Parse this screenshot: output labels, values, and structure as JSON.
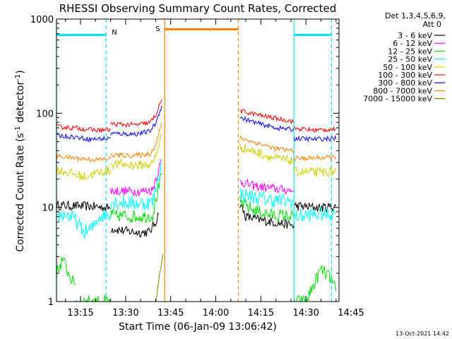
{
  "chart_data": {
    "type": "line",
    "title": "RHESSI Observing Summary Count Rates, Corrected",
    "xlabel": "Start Time (06-Jan-09 13:06:42)",
    "ylabel_main": "Corrected Count Rate (s",
    "ylabel_sup1": "-1",
    "ylabel_mid": " detector",
    "ylabel_sup2": "-1",
    "ylabel_end": ")",
    "yscale": "log",
    "ylim": [
      1,
      1000
    ],
    "xlim_min": [
      7,
      101
    ],
    "x_ticks": [
      {
        "m": 15,
        "label": "13:15"
      },
      {
        "m": 30,
        "label": "13:30"
      },
      {
        "m": 45,
        "label": "13:45"
      },
      {
        "m": 60,
        "label": "14:00"
      },
      {
        "m": 75,
        "label": "14:15"
      },
      {
        "m": 90,
        "label": "14:30"
      },
      {
        "m": 105,
        "label": "14:45"
      }
    ],
    "y_ticks": [
      {
        "v": 1,
        "label": "1"
      },
      {
        "v": 10,
        "label": "10"
      },
      {
        "v": 100,
        "label": "100"
      },
      {
        "v": 1000,
        "label": "1000"
      }
    ],
    "legend_header": [
      "Det 1,3,4,5,6,9,",
      "Att 0"
    ],
    "legend_position": "right",
    "footer": "13-Oct-2021 14:42",
    "flags": [
      {
        "label": "N",
        "color": "#00e5ee"
      },
      {
        "label": "S",
        "color": "#ff8000"
      }
    ],
    "series": [
      {
        "name": "3 - 6 keV",
        "color": "#000000",
        "noise": 0.05,
        "segments": [
          [
            [
              7,
              10.5
            ],
            [
              20,
              10.2
            ],
            [
              25,
              9.8
            ]
          ],
          [
            [
              25,
              6.0
            ],
            [
              30,
              5.6
            ],
            [
              35,
              5.4
            ],
            [
              38,
              5.5
            ],
            [
              40,
              7.0
            ],
            [
              41,
              8.5
            ]
          ],
          [
            [
              68,
              11.0
            ],
            [
              70,
              8.0
            ],
            [
              75,
              7.3
            ],
            [
              80,
              6.9
            ],
            [
              84,
              6.6
            ],
            [
              86,
              6.4
            ]
          ],
          [
            [
              86,
              10.4
            ],
            [
              95,
              9.9
            ],
            [
              100,
              10.3
            ]
          ]
        ]
      },
      {
        "name": "6 - 12 keV",
        "color": "#ff00ff",
        "noise": 0.05,
        "segments": [
          [
            [
              25,
              15.0
            ],
            [
              35,
              14.8
            ],
            [
              39,
              15.3
            ],
            [
              40,
              20.0
            ],
            [
              42,
              32.0
            ]
          ],
          [
            [
              68,
              19.0
            ],
            [
              72,
              17.0
            ],
            [
              78,
              16.0
            ],
            [
              86,
              15.0
            ]
          ]
        ]
      },
      {
        "name": "12 - 25 keV",
        "color": "#00e000",
        "noise": 0.07,
        "segments": [
          [
            [
              7,
              2.0
            ],
            [
              9,
              2.8
            ],
            [
              11,
              2.0
            ],
            [
              13,
              1.5
            ]
          ],
          [
            [
              13,
              1.0
            ],
            [
              25,
              1.0
            ]
          ],
          [
            [
              25,
              8.2
            ],
            [
              35,
              8.0
            ],
            [
              39,
              8.2
            ],
            [
              40,
              12.0
            ],
            [
              42,
              22.0
            ]
          ],
          [
            [
              68,
              11.5
            ],
            [
              72,
              9.5
            ],
            [
              78,
              8.3
            ],
            [
              86,
              8.0
            ]
          ],
          [
            [
              86,
              1.0
            ],
            [
              90,
              1.0
            ],
            [
              93,
              1.6
            ],
            [
              95,
              2.2
            ],
            [
              98,
              1.8
            ],
            [
              100,
              1.3
            ]
          ]
        ]
      },
      {
        "name": "25 - 50 keV",
        "color": "#00ffff",
        "noise": 0.08,
        "segments": [
          [
            [
              7,
              8.0
            ],
            [
              10,
              8.5
            ],
            [
              13,
              7.5
            ],
            [
              16,
              5.5
            ],
            [
              19,
              6.0
            ],
            [
              21,
              8.0
            ],
            [
              25,
              8.5
            ]
          ],
          [
            [
              25,
              11.5
            ],
            [
              35,
              11.0
            ],
            [
              39,
              11.3
            ],
            [
              40,
              16.0
            ],
            [
              42,
              30.0
            ]
          ],
          [
            [
              68,
              14.0
            ],
            [
              72,
              13.0
            ],
            [
              78,
              12.0
            ],
            [
              86,
              11.5
            ]
          ],
          [
            [
              86,
              8.0
            ],
            [
              93,
              8.4
            ],
            [
              100,
              8.5
            ]
          ]
        ]
      },
      {
        "name": "50 - 100 keV",
        "color": "#d0d000",
        "noise": 0.05,
        "segments": [
          [
            [
              7,
              25.0
            ],
            [
              12,
              23.0
            ],
            [
              16,
              21.0
            ],
            [
              20,
              23.0
            ],
            [
              25,
              25.0
            ]
          ],
          [
            [
              25,
              29.0
            ],
            [
              35,
              28.0
            ],
            [
              39,
              29.0
            ],
            [
              40,
              35.0
            ],
            [
              42,
              60.0
            ]
          ],
          [
            [
              68,
              44.0
            ],
            [
              74,
              38.0
            ],
            [
              80,
              33.0
            ],
            [
              86,
              31.0
            ]
          ],
          [
            [
              86,
              24.0
            ],
            [
              93,
              23.5
            ],
            [
              100,
              24.0
            ]
          ]
        ]
      },
      {
        "name": "100 - 300 keV",
        "color": "#ff0000",
        "noise": 0.025,
        "segments": [
          [
            [
              7,
              72.0
            ],
            [
              15,
              69.0
            ],
            [
              20,
              66.0
            ],
            [
              25,
              67.0
            ]
          ],
          [
            [
              25,
              77.0
            ],
            [
              33,
              75.0
            ],
            [
              38,
              79.0
            ],
            [
              40,
              95.0
            ],
            [
              42,
              140.0
            ]
          ],
          [
            [
              68,
              106.0
            ],
            [
              74,
              96.0
            ],
            [
              80,
              88.0
            ],
            [
              86,
              82.0
            ]
          ],
          [
            [
              86,
              69.0
            ],
            [
              93,
              66.0
            ],
            [
              100,
              68.0
            ]
          ]
        ]
      },
      {
        "name": "300 - 800 keV",
        "color": "#0000ff",
        "noise": 0.025,
        "segments": [
          [
            [
              7,
              58.0
            ],
            [
              13,
              56.0
            ],
            [
              18,
              53.0
            ],
            [
              25,
              54.0
            ]
          ],
          [
            [
              25,
              61.0
            ],
            [
              33,
              60.0
            ],
            [
              38,
              64.0
            ],
            [
              40,
              78.0
            ],
            [
              42,
              120.0
            ]
          ],
          [
            [
              68,
              90.0
            ],
            [
              74,
              78.0
            ],
            [
              80,
              70.0
            ],
            [
              86,
              67.0
            ]
          ],
          [
            [
              86,
              54.0
            ],
            [
              93,
              53.0
            ],
            [
              100,
              54.0
            ]
          ]
        ]
      },
      {
        "name": "800 - 7000 keV",
        "color": "#ff8000",
        "noise": 0.025,
        "segments": [
          [
            [
              7,
              35.0
            ],
            [
              15,
              33.0
            ],
            [
              20,
              32.0
            ],
            [
              25,
              33.0
            ]
          ],
          [
            [
              25,
              36.0
            ],
            [
              33,
              35.5
            ],
            [
              38,
              37.0
            ],
            [
              40,
              45.0
            ],
            [
              42,
              80.0
            ]
          ],
          [
            [
              68,
              55.0
            ],
            [
              74,
              48.0
            ],
            [
              80,
              42.0
            ],
            [
              86,
              40.0
            ]
          ],
          [
            [
              86,
              33.0
            ],
            [
              93,
              33.5
            ],
            [
              100,
              34.0
            ]
          ]
        ]
      },
      {
        "name": "7000 - 15000 keV",
        "color": "#808000",
        "noise": 0.03,
        "segments": [
          [
            [
              40,
              1.0
            ],
            [
              41,
              1.6
            ],
            [
              42,
              2.6
            ],
            [
              42.5,
              3.2
            ]
          ]
        ]
      }
    ],
    "instrument_lines": [
      {
        "name": "night",
        "color": "#00e5ee",
        "solid_at": [
          7,
          86
        ],
        "dashed_at": [
          23.5,
          98.5
        ],
        "bar": [
          [
            7,
            23.5
          ],
          [
            86,
            98.5
          ]
        ],
        "bar_value": 680
      },
      {
        "name": "saa",
        "color": "#ff8000",
        "solid_at": [
          43
        ],
        "dashed_at": [
          67.5
        ],
        "bar": [
          [
            43,
            67.5
          ]
        ],
        "bar_value": 780
      }
    ]
  }
}
